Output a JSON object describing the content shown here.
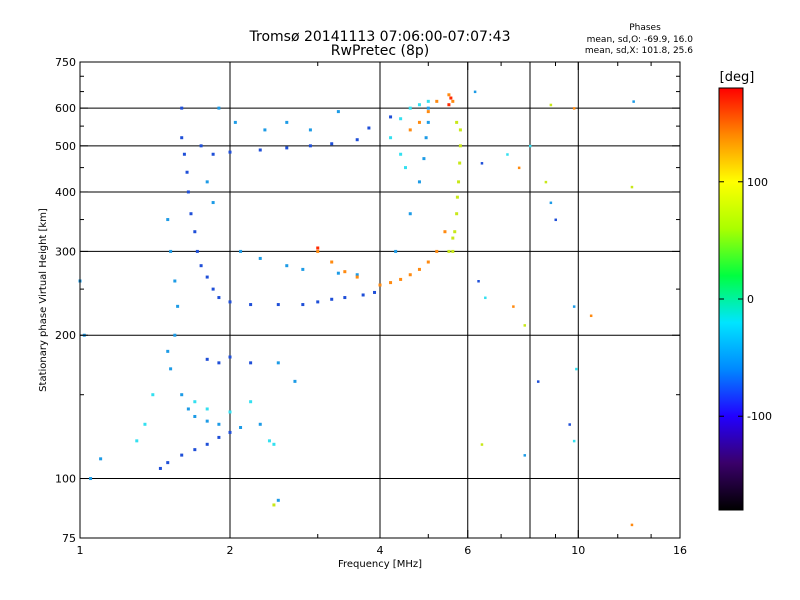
{
  "chart_data": {
    "type": "scatter",
    "title": "Tromsø 20141113 07:06:00-07:07:43",
    "subtitle": "RwPretec (8p)",
    "stats": {
      "heading": "Phases",
      "line1": "mean, sd,O: -69.9, 16.0",
      "line2": "mean, sd,X: 101.8, 25.6"
    },
    "xlabel": "Frequency [MHz]",
    "ylabel": "Stationary phase Virtual Height [km]",
    "x_scale": "log",
    "y_scale": "log",
    "xlim": [
      1,
      16
    ],
    "ylim": [
      75,
      750
    ],
    "x_ticks": [
      1,
      2,
      4,
      6,
      10,
      16
    ],
    "x_tick_labels": [
      "1",
      "2",
      "4",
      "6",
      "10",
      "16"
    ],
    "x_minor_ticks": [
      3,
      5,
      7,
      8,
      9,
      12,
      14
    ],
    "y_ticks": [
      75,
      100,
      200,
      300,
      400,
      500,
      600,
      750
    ],
    "y_tick_labels": [
      "75",
      "100",
      "200",
      "300",
      "400",
      "500",
      "600",
      "750"
    ],
    "y_minor_ticks": [
      150,
      250,
      350,
      450,
      550,
      650,
      700
    ],
    "grid_x": [
      2,
      4,
      6,
      8,
      10
    ],
    "grid_y": [
      100,
      200,
      300,
      400,
      500,
      600
    ],
    "colorbar": {
      "label": "[deg]",
      "range": [
        -180,
        180
      ],
      "ticks": [
        100,
        0,
        -100
      ],
      "tick_labels": [
        "100",
        "0",
        "-100"
      ],
      "colormap": [
        "#000000",
        "#3a006a",
        "#2200ff",
        "#0088ff",
        "#00e5ff",
        "#00ff40",
        "#aaff00",
        "#ffff00",
        "#ff8800",
        "#ff0000"
      ]
    },
    "grid": true,
    "legend": "colorbar-right",
    "series": [
      {
        "phase_range": [
          -100,
          -80
        ],
        "color": "#1f4fd8",
        "points": [
          [
            1.6,
            600
          ],
          [
            1.6,
            520
          ],
          [
            1.62,
            480
          ],
          [
            1.64,
            440
          ],
          [
            1.65,
            400
          ],
          [
            1.67,
            360
          ],
          [
            1.7,
            330
          ],
          [
            1.72,
            300
          ],
          [
            1.75,
            280
          ],
          [
            1.8,
            265
          ],
          [
            1.85,
            250
          ],
          [
            1.9,
            240
          ],
          [
            2.0,
            235
          ],
          [
            2.2,
            232
          ],
          [
            2.5,
            232
          ],
          [
            2.8,
            232
          ],
          [
            3.0,
            235
          ],
          [
            3.2,
            238
          ],
          [
            3.4,
            240
          ],
          [
            3.7,
            243
          ],
          [
            3.9,
            246
          ],
          [
            1.75,
            500
          ],
          [
            1.85,
            480
          ],
          [
            2.0,
            485
          ],
          [
            2.3,
            490
          ],
          [
            2.6,
            495
          ],
          [
            2.9,
            500
          ],
          [
            3.2,
            505
          ],
          [
            3.6,
            515
          ],
          [
            3.8,
            545
          ],
          [
            4.2,
            575
          ],
          [
            2.0,
            180
          ],
          [
            1.9,
            175
          ],
          [
            1.8,
            178
          ],
          [
            2.2,
            175
          ],
          [
            1.6,
            112
          ],
          [
            1.7,
            115
          ],
          [
            1.8,
            118
          ],
          [
            1.9,
            122
          ],
          [
            2.0,
            125
          ],
          [
            1.5,
            108
          ],
          [
            1.45,
            105
          ]
        ]
      },
      {
        "phase_range": [
          -80,
          -60
        ],
        "color": "#1d9be6",
        "points": [
          [
            1.5,
            350
          ],
          [
            1.52,
            300
          ],
          [
            1.55,
            260
          ],
          [
            1.57,
            230
          ],
          [
            1.55,
            200
          ],
          [
            1.5,
            185
          ],
          [
            1.52,
            170
          ],
          [
            1.6,
            150
          ],
          [
            1.65,
            140
          ],
          [
            1.7,
            135
          ],
          [
            1.8,
            132
          ],
          [
            1.9,
            130
          ],
          [
            2.1,
            128
          ],
          [
            2.3,
            130
          ],
          [
            1.8,
            420
          ],
          [
            1.85,
            380
          ],
          [
            2.1,
            300
          ],
          [
            2.3,
            290
          ],
          [
            2.6,
            280
          ],
          [
            2.8,
            275
          ],
          [
            3.3,
            270
          ],
          [
            3.6,
            268
          ],
          [
            4.0,
            255
          ],
          [
            4.3,
            300
          ],
          [
            4.6,
            360
          ],
          [
            4.8,
            420
          ],
          [
            4.9,
            470
          ],
          [
            4.95,
            520
          ],
          [
            5.0,
            560
          ],
          [
            5.0,
            600
          ],
          [
            1.9,
            600
          ],
          [
            2.05,
            560
          ],
          [
            2.35,
            540
          ],
          [
            2.6,
            560
          ],
          [
            2.9,
            540
          ],
          [
            3.3,
            590
          ],
          [
            1.1,
            110
          ],
          [
            1.05,
            100
          ],
          [
            1.0,
            260
          ],
          [
            1.02,
            200
          ],
          [
            2.5,
            175
          ],
          [
            2.7,
            160
          ],
          [
            2.5,
            90
          ]
        ]
      },
      {
        "phase_range": [
          -60,
          -40
        ],
        "color": "#33e0f0",
        "points": [
          [
            1.7,
            145
          ],
          [
            1.8,
            140
          ],
          [
            2.0,
            138
          ],
          [
            2.2,
            145
          ],
          [
            2.4,
            120
          ],
          [
            2.45,
            118
          ],
          [
            1.4,
            150
          ],
          [
            1.35,
            130
          ],
          [
            1.3,
            120
          ],
          [
            4.4,
            570
          ],
          [
            4.6,
            600
          ],
          [
            4.8,
            610
          ],
          [
            5.0,
            620
          ],
          [
            4.2,
            520
          ],
          [
            4.4,
            480
          ],
          [
            4.5,
            450
          ]
        ]
      },
      {
        "phase_range": [
          80,
          110
        ],
        "color": "#c8e818",
        "points": [
          [
            5.6,
            300
          ],
          [
            5.65,
            330
          ],
          [
            5.7,
            360
          ],
          [
            5.72,
            390
          ],
          [
            5.75,
            420
          ],
          [
            5.78,
            460
          ],
          [
            5.8,
            500
          ],
          [
            5.8,
            540
          ],
          [
            5.7,
            560
          ],
          [
            5.6,
            320
          ],
          [
            5.5,
            300
          ],
          [
            2.45,
            88
          ]
        ]
      },
      {
        "phase_range": [
          120,
          160
        ],
        "color": "#ff8a10",
        "points": [
          [
            4.0,
            255
          ],
          [
            4.2,
            258
          ],
          [
            4.4,
            262
          ],
          [
            4.6,
            268
          ],
          [
            4.8,
            275
          ],
          [
            5.0,
            285
          ],
          [
            5.2,
            300
          ],
          [
            5.4,
            330
          ],
          [
            3.0,
            300
          ],
          [
            3.2,
            285
          ],
          [
            3.4,
            272
          ],
          [
            3.6,
            265
          ],
          [
            4.6,
            540
          ],
          [
            4.8,
            560
          ],
          [
            5.0,
            590
          ],
          [
            5.2,
            620
          ],
          [
            5.5,
            640
          ],
          [
            5.6,
            620
          ]
        ]
      },
      {
        "phase_range": [
          160,
          180
        ],
        "color": "#ff2a00",
        "points": [
          [
            5.5,
            610
          ],
          [
            5.55,
            630
          ],
          [
            3.0,
            305
          ]
        ]
      }
    ],
    "sparse_points": [
      [
        6.2,
        650
      ],
      [
        6.4,
        460
      ],
      [
        7.2,
        480
      ],
      [
        7.6,
        450
      ],
      [
        8.6,
        420
      ],
      [
        8.8,
        380
      ],
      [
        9.0,
        350
      ],
      [
        8.0,
        500
      ],
      [
        9.8,
        600
      ],
      [
        12.8,
        410
      ],
      [
        12.9,
        620
      ],
      [
        6.3,
        260
      ],
      [
        6.5,
        240
      ],
      [
        7.4,
        230
      ],
      [
        7.8,
        210
      ],
      [
        9.8,
        230
      ],
      [
        8.3,
        160
      ],
      [
        9.9,
        170
      ],
      [
        10.6,
        220
      ],
      [
        6.4,
        118
      ],
      [
        7.8,
        112
      ],
      [
        9.6,
        130
      ],
      [
        9.8,
        120
      ],
      [
        12.8,
        80
      ],
      [
        8.8,
        610
      ]
    ]
  }
}
